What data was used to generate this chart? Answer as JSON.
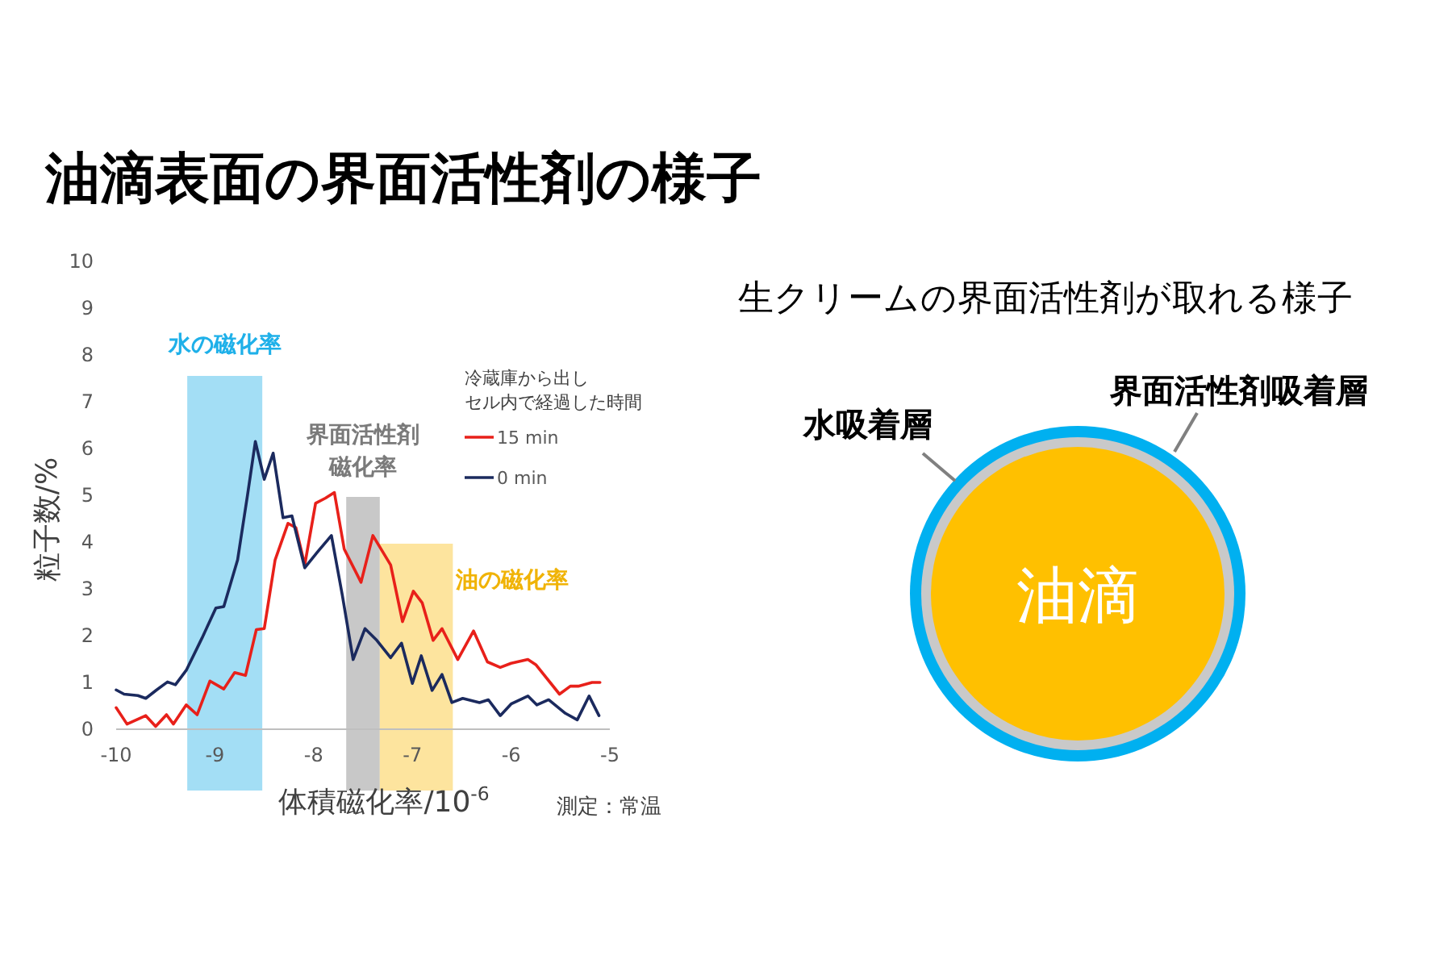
{
  "chart_data": [
    {
      "type": "line",
      "title": "油滴表面の界面活性剤の様子",
      "xlabel": "体積磁化率/10$^{-6}$",
      "ylabel": "粒子数/%",
      "legend_title": "冷蔵庫から出しセル内で経過した時間",
      "xlim": [
        -10,
        -5
      ],
      "xticks": [
        -10,
        -9,
        -8,
        -7,
        -6,
        -5
      ],
      "ylim": [
        0,
        10
      ],
      "yticks": [
        0,
        1,
        2,
        3,
        4,
        5,
        6,
        7,
        8,
        9,
        10
      ],
      "grid": false,
      "legend": "top right",
      "marker": "none",
      "line_style": "solid",
      "series": [
        {
          "name": "15 min",
          "color": "#e8201a",
          "x": [
            -10,
            -9.89,
            -9.7,
            -9.6,
            -9.49,
            -9.42,
            -9.29,
            -9.18,
            -9.05,
            -8.91,
            -8.8,
            -8.69,
            -8.58,
            -8.5,
            -8.39,
            -8.26,
            -8.18,
            -8.09,
            -7.98,
            -7.88,
            -7.79,
            -7.69,
            -7.52,
            -7.4,
            -7.3,
            -7.22,
            -7.1,
            -6.99,
            -6.9,
            -6.79,
            -6.7,
            -6.54,
            -6.38,
            -6.24,
            -6.11,
            -6.0,
            -5.83,
            -5.75,
            -5.51,
            -5.4,
            -5.32,
            -5.18,
            -5.1
          ],
          "values": [
            0.46,
            0.11,
            0.29,
            0.06,
            0.31,
            0.11,
            0.52,
            0.31,
            1.03,
            0.86,
            1.21,
            1.15,
            2.13,
            2.15,
            3.62,
            4.4,
            4.31,
            3.51,
            4.83,
            4.94,
            5.06,
            3.85,
            3.14,
            4.14,
            3.79,
            3.51,
            2.3,
            2.95,
            2.7,
            1.9,
            2.15,
            1.49,
            2.1,
            1.44,
            1.32,
            1.41,
            1.49,
            1.38,
            0.75,
            0.92,
            0.92,
            1.0,
            1.0
          ]
        },
        {
          "name": "0 min",
          "color": "#1b2a5e",
          "x": [
            -10,
            -9.92,
            -9.78,
            -9.7,
            -9.59,
            -9.48,
            -9.4,
            -9.29,
            -9.13,
            -8.99,
            -8.91,
            -8.77,
            -8.67,
            -8.59,
            -8.5,
            -8.41,
            -8.31,
            -8.22,
            -8.09,
            -7.96,
            -7.82,
            -7.71,
            -7.6,
            -7.48,
            -7.36,
            -7.22,
            -7.11,
            -7.0,
            -6.91,
            -6.8,
            -6.7,
            -6.6,
            -6.49,
            -6.32,
            -6.23,
            -6.11,
            -6.0,
            -5.83,
            -5.74,
            -5.62,
            -5.45,
            -5.33,
            -5.21,
            -5.11
          ],
          "values": [
            0.84,
            0.75,
            0.72,
            0.66,
            0.84,
            1.01,
            0.95,
            1.26,
            1.95,
            2.59,
            2.62,
            3.62,
            5.0,
            6.15,
            5.34,
            5.9,
            4.52,
            4.56,
            3.45,
            3.79,
            4.14,
            2.87,
            1.49,
            2.15,
            1.9,
            1.53,
            1.84,
            0.98,
            1.57,
            0.83,
            1.17,
            0.57,
            0.66,
            0.57,
            0.63,
            0.29,
            0.54,
            0.71,
            0.52,
            0.63,
            0.34,
            0.2,
            0.71,
            0.29
          ]
        }
      ],
      "bands": [
        {
          "axis": "x",
          "from": -9.28,
          "to": -8.52,
          "label": "水の磁化率",
          "color": "#a3def5"
        },
        {
          "axis": "x",
          "from": -7.67,
          "to": -7.33,
          "label": "界面活性剤磁化率",
          "color": "#c8c8c8"
        },
        {
          "axis": "x",
          "from": -7.33,
          "to": -6.59,
          "label": "油の磁化率",
          "color": "#fde49e"
        }
      ],
      "annotations": [
        "測定：常温"
      ]
    },
    {
      "type": "other",
      "title": "生クリームの界面活性剤が取れる様子",
      "annotations": [
        "界面活性剤吸着層",
        "水吸着層",
        "油滴"
      ]
    }
  ]
}
